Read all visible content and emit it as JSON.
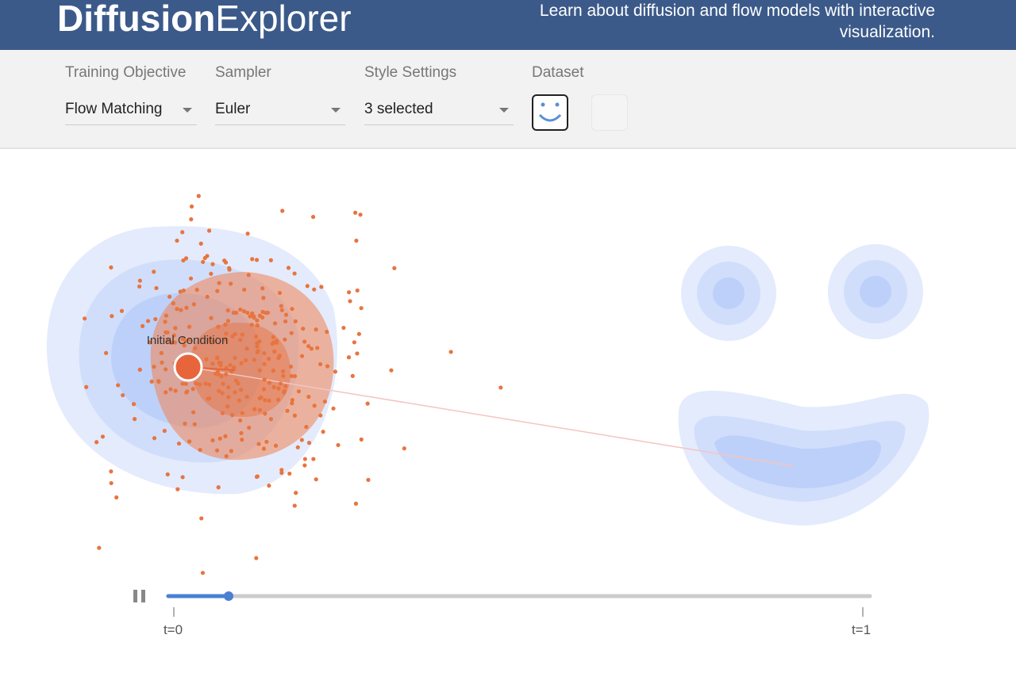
{
  "header": {
    "title_bold": "Diffusion",
    "title_light": "Explorer",
    "tagline": "Learn about diffusion and flow models with interactive visualization."
  },
  "controls": [
    {
      "label": "Training Objective",
      "value": "Flow Matching"
    },
    {
      "label": "Sampler",
      "value": "Euler"
    },
    {
      "label": "Style Settings",
      "value": "3 selected"
    }
  ],
  "dataset": {
    "label": "Dataset"
  },
  "canvas": {
    "annotation": "Initial Condition"
  },
  "timeline": {
    "start_label": "t=0",
    "end_label": "t=1"
  }
}
